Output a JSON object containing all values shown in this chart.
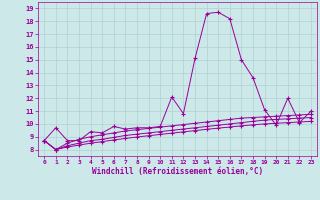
{
  "xlabel": "Windchill (Refroidissement éolien,°C)",
  "bg_color": "#cce8e8",
  "line_color": "#990099",
  "grid_color": "#b0d0d0",
  "xlim": [
    -0.5,
    23.5
  ],
  "ylim": [
    7.5,
    19.5
  ],
  "xticks": [
    0,
    1,
    2,
    3,
    4,
    5,
    6,
    7,
    8,
    9,
    10,
    11,
    12,
    13,
    14,
    15,
    16,
    17,
    18,
    19,
    20,
    21,
    22,
    23
  ],
  "yticks": [
    8,
    9,
    10,
    11,
    12,
    13,
    14,
    15,
    16,
    17,
    18,
    19
  ],
  "series": [
    {
      "x": [
        0,
        1,
        2,
        3,
        4,
        5,
        6,
        7,
        8,
        9,
        10,
        11,
        12,
        13,
        14,
        15,
        16,
        17,
        18,
        19,
        20,
        21,
        22,
        23
      ],
      "y": [
        8.7,
        9.7,
        8.7,
        8.7,
        9.4,
        9.3,
        9.8,
        9.6,
        9.7,
        9.7,
        9.8,
        12.1,
        10.8,
        15.1,
        18.6,
        18.7,
        18.2,
        15.0,
        13.6,
        11.1,
        9.9,
        12.0,
        10.1,
        11.0
      ]
    },
    {
      "x": [
        0,
        1,
        2,
        3,
        4,
        5,
        6,
        7,
        8,
        9,
        10,
        11,
        12,
        13,
        14,
        15,
        16,
        17,
        18,
        19,
        20,
        21,
        22,
        23
      ],
      "y": [
        8.7,
        8.0,
        8.5,
        8.8,
        9.0,
        9.15,
        9.3,
        9.45,
        9.55,
        9.65,
        9.75,
        9.85,
        9.95,
        10.05,
        10.15,
        10.25,
        10.35,
        10.45,
        10.5,
        10.55,
        10.6,
        10.65,
        10.7,
        10.75
      ]
    },
    {
      "x": [
        0,
        1,
        2,
        3,
        4,
        5,
        6,
        7,
        8,
        9,
        10,
        11,
        12,
        13,
        14,
        15,
        16,
        17,
        18,
        19,
        20,
        21,
        22,
        23
      ],
      "y": [
        8.7,
        8.0,
        8.3,
        8.5,
        8.7,
        8.8,
        8.95,
        9.1,
        9.2,
        9.3,
        9.4,
        9.5,
        9.6,
        9.7,
        9.8,
        9.9,
        10.0,
        10.1,
        10.2,
        10.3,
        10.35,
        10.4,
        10.45,
        10.5
      ]
    },
    {
      "x": [
        0,
        1,
        2,
        3,
        4,
        5,
        6,
        7,
        8,
        9,
        10,
        11,
        12,
        13,
        14,
        15,
        16,
        17,
        18,
        19,
        20,
        21,
        22,
        23
      ],
      "y": [
        8.7,
        8.0,
        8.2,
        8.35,
        8.5,
        8.62,
        8.75,
        8.87,
        8.98,
        9.08,
        9.18,
        9.28,
        9.38,
        9.48,
        9.58,
        9.67,
        9.76,
        9.85,
        9.93,
        10.0,
        10.05,
        10.1,
        10.15,
        10.2
      ]
    }
  ]
}
